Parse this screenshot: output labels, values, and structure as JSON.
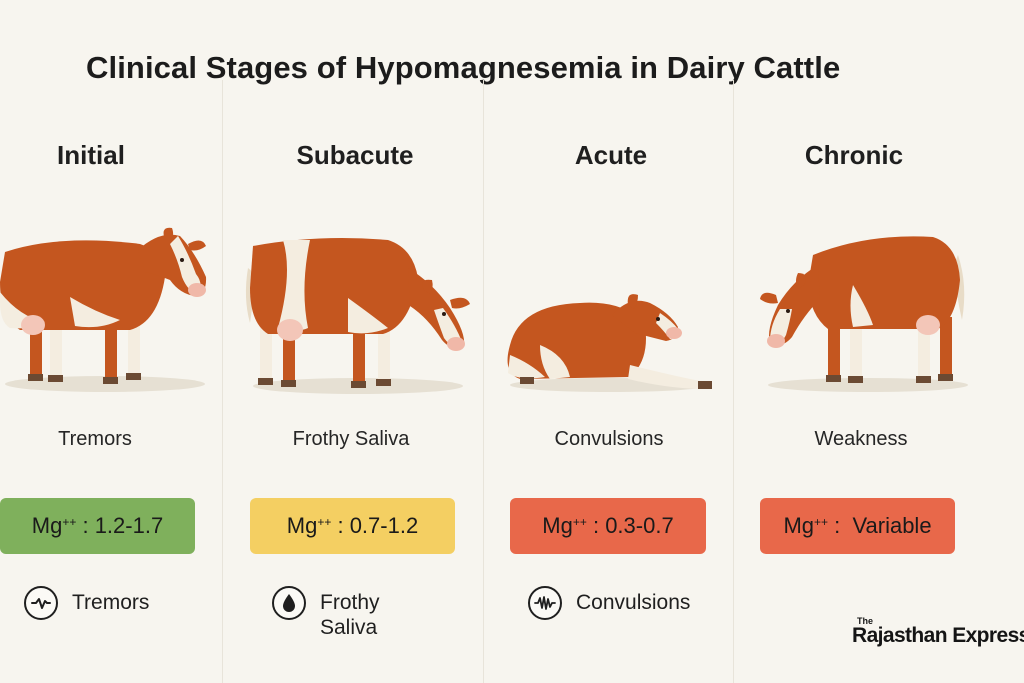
{
  "title": "Clinical Stages of Hypomagnesemia in Dairy Cattle",
  "stages": [
    {
      "name": "Initial",
      "symptom": "Tremors",
      "mg_prefix": "Mg",
      "mg_sup": "++",
      "mg_value": " : 1.2-1.7",
      "color": "#7fb05c"
    },
    {
      "name": "Subacute",
      "symptom": "Frothy Saliva",
      "mg_prefix": "Mg",
      "mg_sup": "++",
      "mg_value": " : 0.7-1.2",
      "color": "#f4cf62"
    },
    {
      "name": "Acute",
      "symptom": "Convulsions",
      "mg_prefix": "Mg",
      "mg_sup": "++",
      "mg_value": " : 0.3-0.7",
      "color": "#e8684a"
    },
    {
      "name": "Chronic",
      "symptom": "Weakness",
      "mg_prefix": "Mg",
      "mg_sup": "++",
      "mg_value": " :  Variable",
      "color": "#e8684a"
    }
  ],
  "legend": [
    {
      "icon": "tremor-wave-icon",
      "label": "Tremors"
    },
    {
      "icon": "droplet-icon",
      "label": "Frothy Saliva"
    },
    {
      "icon": "convulsion-wave-icon",
      "label": "Convulsions"
    }
  ],
  "brand": {
    "small": "The",
    "main": "Rajasthan Express"
  },
  "colors": {
    "cow_coat": "#c4561f",
    "cow_white": "#f4ede0",
    "background": "#f7f5ef"
  }
}
